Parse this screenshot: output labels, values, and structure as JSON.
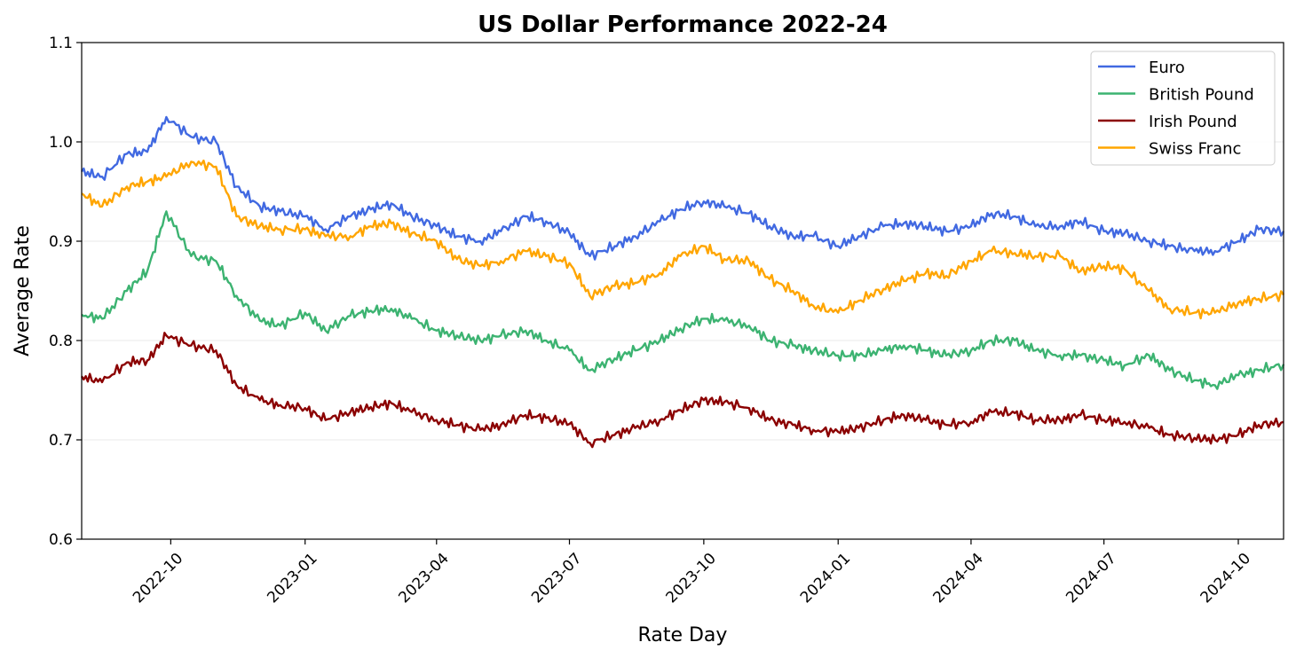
{
  "chart_data": {
    "type": "line",
    "title": "US Dollar Performance 2022-24",
    "xlabel": "Rate Day",
    "ylabel": "Average Rate",
    "xlim": [
      "2022-08-01",
      "2024-11-01"
    ],
    "ylim": [
      0.6,
      1.1
    ],
    "yticks": [
      0.6,
      0.7,
      0.8,
      0.9,
      1.0,
      1.1
    ],
    "ytick_labels": [
      "0.6",
      "0.7",
      "0.8",
      "0.9",
      "1.0",
      "1.1"
    ],
    "xticks": [
      "2022-10-01",
      "2023-01-01",
      "2023-04-01",
      "2023-07-01",
      "2023-10-01",
      "2024-01-01",
      "2024-04-01",
      "2024-07-01",
      "2024-10-01"
    ],
    "xtick_labels": [
      "2022-10",
      "2023-01",
      "2023-04",
      "2023-07",
      "2023-10",
      "2024-01",
      "2024-04",
      "2024-07",
      "2024-10"
    ],
    "grid": "horizontal",
    "legend_position": "top-right",
    "x": [
      "2022-08-01",
      "2022-08-15",
      "2022-09-01",
      "2022-09-15",
      "2022-09-28",
      "2022-10-15",
      "2022-11-01",
      "2022-11-15",
      "2022-12-01",
      "2022-12-15",
      "2023-01-01",
      "2023-01-15",
      "2023-02-01",
      "2023-02-15",
      "2023-03-01",
      "2023-03-15",
      "2023-04-01",
      "2023-04-15",
      "2023-05-01",
      "2023-05-15",
      "2023-06-01",
      "2023-06-15",
      "2023-07-01",
      "2023-07-15",
      "2023-08-01",
      "2023-08-15",
      "2023-09-01",
      "2023-09-15",
      "2023-10-01",
      "2023-10-15",
      "2023-11-01",
      "2023-11-15",
      "2023-12-01",
      "2023-12-15",
      "2024-01-01",
      "2024-01-15",
      "2024-02-01",
      "2024-02-15",
      "2024-03-01",
      "2024-03-15",
      "2024-04-01",
      "2024-04-15",
      "2024-05-01",
      "2024-05-15",
      "2024-06-01",
      "2024-06-15",
      "2024-07-01",
      "2024-07-15",
      "2024-08-01",
      "2024-08-15",
      "2024-09-01",
      "2024-09-15",
      "2024-10-01",
      "2024-10-15",
      "2024-11-01"
    ],
    "series": [
      {
        "name": "Euro",
        "color": "#4169e1",
        "values": [
          0.97,
          0.965,
          0.988,
          0.99,
          1.025,
          1.005,
          1.0,
          0.955,
          0.935,
          0.93,
          0.925,
          0.912,
          0.925,
          0.932,
          0.938,
          0.925,
          0.915,
          0.905,
          0.9,
          0.91,
          0.925,
          0.92,
          0.908,
          0.885,
          0.895,
          0.905,
          0.92,
          0.932,
          0.94,
          0.935,
          0.928,
          0.915,
          0.905,
          0.905,
          0.895,
          0.905,
          0.915,
          0.918,
          0.915,
          0.91,
          0.915,
          0.928,
          0.925,
          0.915,
          0.915,
          0.92,
          0.91,
          0.908,
          0.9,
          0.895,
          0.89,
          0.89,
          0.9,
          0.912,
          0.91
        ]
      },
      {
        "name": "British Pound",
        "color": "#3cb371",
        "values": [
          0.826,
          0.822,
          0.85,
          0.87,
          0.93,
          0.885,
          0.88,
          0.845,
          0.82,
          0.815,
          0.828,
          0.81,
          0.825,
          0.83,
          0.832,
          0.822,
          0.81,
          0.805,
          0.8,
          0.805,
          0.81,
          0.8,
          0.79,
          0.77,
          0.782,
          0.79,
          0.8,
          0.812,
          0.822,
          0.82,
          0.815,
          0.8,
          0.795,
          0.79,
          0.785,
          0.785,
          0.79,
          0.795,
          0.79,
          0.785,
          0.79,
          0.8,
          0.8,
          0.79,
          0.785,
          0.785,
          0.78,
          0.775,
          0.785,
          0.77,
          0.76,
          0.755,
          0.765,
          0.77,
          0.776
        ]
      },
      {
        "name": "Irish Pound",
        "color": "#8b0000",
        "values": [
          0.764,
          0.758,
          0.778,
          0.78,
          0.805,
          0.795,
          0.79,
          0.755,
          0.74,
          0.735,
          0.732,
          0.72,
          0.728,
          0.733,
          0.737,
          0.728,
          0.72,
          0.715,
          0.71,
          0.715,
          0.725,
          0.722,
          0.716,
          0.697,
          0.705,
          0.712,
          0.72,
          0.73,
          0.74,
          0.738,
          0.732,
          0.72,
          0.715,
          0.71,
          0.708,
          0.712,
          0.72,
          0.725,
          0.72,
          0.715,
          0.718,
          0.728,
          0.727,
          0.72,
          0.72,
          0.725,
          0.72,
          0.718,
          0.712,
          0.705,
          0.702,
          0.7,
          0.705,
          0.715,
          0.718
        ]
      },
      {
        "name": "Swiss Franc",
        "color": "#ffa500",
        "values": [
          0.948,
          0.935,
          0.955,
          0.96,
          0.965,
          0.98,
          0.975,
          0.925,
          0.915,
          0.912,
          0.912,
          0.905,
          0.905,
          0.915,
          0.918,
          0.908,
          0.9,
          0.882,
          0.875,
          0.88,
          0.89,
          0.885,
          0.878,
          0.845,
          0.855,
          0.858,
          0.868,
          0.885,
          0.895,
          0.882,
          0.88,
          0.862,
          0.85,
          0.835,
          0.828,
          0.84,
          0.852,
          0.86,
          0.868,
          0.865,
          0.88,
          0.89,
          0.888,
          0.885,
          0.885,
          0.87,
          0.875,
          0.872,
          0.85,
          0.832,
          0.828,
          0.828,
          0.838,
          0.842,
          0.846
        ]
      }
    ]
  }
}
